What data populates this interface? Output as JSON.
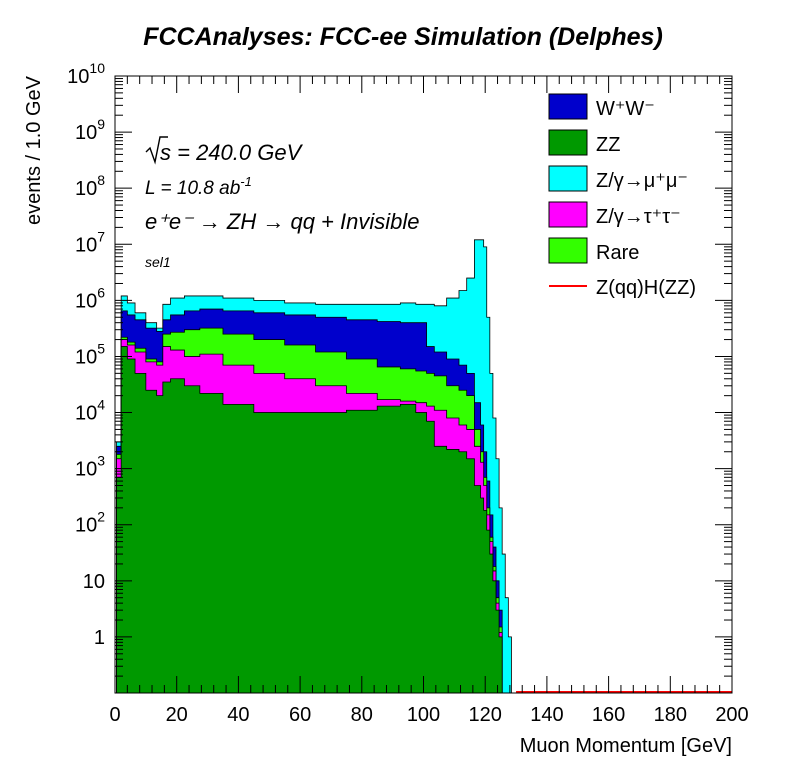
{
  "chart_data": {
    "type": "area",
    "stacked": true,
    "title": "FCCAnalyses: FCC-ee Simulation (Delphes)",
    "xlabel": "Muon Momentum [GeV]",
    "ylabel": "events / 1.0 GeV",
    "xlim": [
      0,
      200
    ],
    "ylim": [
      0.1,
      10000000000
    ],
    "log_y": true,
    "grid": false,
    "legend_position": "top-right",
    "x_ticks": [
      "0",
      "20",
      "40",
      "60",
      "80",
      "100",
      "120",
      "140",
      "160",
      "180",
      "200"
    ],
    "y_ticks": [
      {
        "value": 1,
        "label": "1",
        "exp": ""
      },
      {
        "value": 10,
        "label": "10",
        "exp": ""
      },
      {
        "value": 100,
        "label": "10",
        "exp": "2"
      },
      {
        "value": 1000,
        "label": "10",
        "exp": "3"
      },
      {
        "value": 10000,
        "label": "10",
        "exp": "4"
      },
      {
        "value": 100000,
        "label": "10",
        "exp": "5"
      },
      {
        "value": 1000000,
        "label": "10",
        "exp": "6"
      },
      {
        "value": 10000000,
        "label": "10",
        "exp": "7"
      },
      {
        "value": 100000000,
        "label": "10",
        "exp": "8"
      },
      {
        "value": 1000000000,
        "label": "10",
        "exp": "9"
      },
      {
        "value": 10000000000,
        "label": "10",
        "exp": "10"
      }
    ],
    "x": [
      1,
      3,
      5,
      8,
      12,
      15,
      16,
      20,
      25,
      30,
      40,
      50,
      60,
      70,
      80,
      90,
      95,
      100,
      102,
      105,
      110,
      113,
      115,
      118,
      119,
      120,
      121,
      122,
      123,
      124,
      125,
      126,
      127,
      128,
      129,
      130
    ],
    "series": [
      {
        "key": "zz",
        "name": "ZZ",
        "color": "#009900",
        "values": [
          700,
          150000,
          90000,
          50000,
          25000,
          20000,
          35000,
          40000,
          30000,
          22000,
          14000,
          10000,
          10000,
          10000,
          11000,
          13000,
          14000,
          10000,
          7000,
          2500,
          2200,
          2000,
          1500,
          500,
          300,
          180,
          80,
          30,
          10,
          3,
          1,
          0.1,
          0.1,
          0.1,
          0.1,
          0.1
        ]
      },
      {
        "key": "tautau",
        "name": "Z/γ→τ⁺τ⁻",
        "color": "#ff00ff",
        "values": [
          1500,
          200000,
          160000,
          120000,
          80000,
          70000,
          150000,
          130000,
          100000,
          110000,
          70000,
          50000,
          40000,
          30000,
          22000,
          17000,
          16000,
          15000,
          13000,
          11000,
          8000,
          6000,
          5000,
          2500,
          1300,
          500,
          150,
          50,
          15,
          4,
          1.2,
          0.1,
          0.1,
          0.1,
          0.1,
          0.1
        ]
      },
      {
        "key": "rare",
        "name": "Rare",
        "color": "#33ff00",
        "values": [
          1800,
          220000,
          180000,
          140000,
          90000,
          80000,
          250000,
          270000,
          300000,
          320000,
          250000,
          200000,
          160000,
          120000,
          90000,
          65000,
          60000,
          55000,
          50000,
          45000,
          30000,
          25000,
          20000,
          5000,
          2000,
          700,
          200,
          60,
          18,
          5,
          1.5,
          0.1,
          0.1,
          0.1,
          0.1,
          0.1
        ]
      },
      {
        "key": "ww",
        "name": "W⁺W⁻",
        "color": "#0000cc",
        "values": [
          2500,
          650000,
          550000,
          450000,
          320000,
          280000,
          450000,
          550000,
          650000,
          700000,
          650000,
          600000,
          550000,
          500000,
          450000,
          420000,
          400000,
          400000,
          150000,
          120000,
          90000,
          70000,
          50000,
          15000,
          6000,
          2000,
          600,
          150,
          40,
          10,
          3,
          0.1,
          0.1,
          0.1,
          0.1,
          0.1
        ]
      },
      {
        "key": "mumu",
        "name": "Z/γ→μ⁺μ⁻",
        "color": "#00ffff",
        "values": [
          3000,
          1200000,
          900000,
          600000,
          400000,
          320000,
          850000,
          1100000,
          1200000,
          1200000,
          1100000,
          1000000,
          900000,
          850000,
          850000,
          850000,
          900000,
          850000,
          850000,
          800000,
          1100000,
          1500000,
          2500000,
          12000000,
          12000000,
          9000000,
          500000,
          50000,
          8000,
          1500,
          200,
          30,
          5,
          1,
          0.1,
          0.1
        ]
      }
    ],
    "signal": {
      "name": "Z(qq)H(ZZ)",
      "color": "#ff0000",
      "value": 0.1
    }
  },
  "annotations": {
    "sqrt_s": "s = 240.0 GeV",
    "lumi_prefix": "L = 10.8 ab",
    "lumi_exp": "-1",
    "process": "e⁺e⁻ → ZH → qq + Invisible",
    "selection": "sel1"
  }
}
